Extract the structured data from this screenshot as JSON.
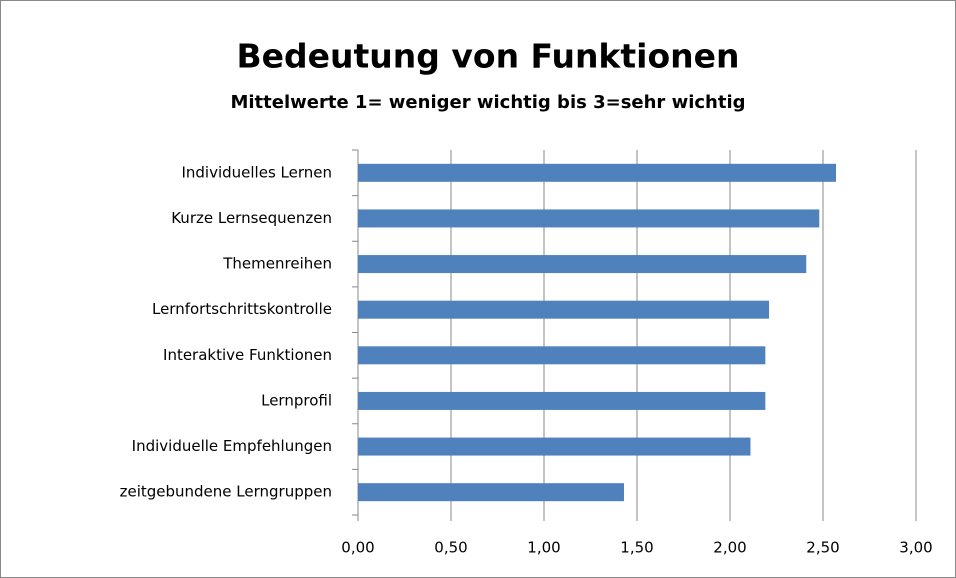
{
  "chart_data": {
    "type": "barh",
    "title": "Bedeutung von Funktionen",
    "subtitle": "Mittelwerte 1= weniger wichtig bis  3=sehr wichtig",
    "categories": [
      "Individuelles Lernen",
      "Kurze Lernsequenzen",
      "Themenreihen",
      "Lernfortschrittskontrolle",
      "Interaktive Funktionen",
      "Lernprofil",
      "Individuelle Empfehlungen",
      "zeitgebundene Lerngruppen"
    ],
    "values": [
      2.57,
      2.48,
      2.41,
      2.21,
      2.19,
      2.19,
      2.11,
      1.43
    ],
    "color": "#4f81bd",
    "xlim": [
      0,
      3
    ],
    "xticks": [
      {
        "value": 0,
        "label": "0,00"
      },
      {
        "value": 0.5,
        "label": "0,50"
      },
      {
        "value": 1,
        "label": "1,00"
      },
      {
        "value": 1.5,
        "label": "1,50"
      },
      {
        "value": 2,
        "label": "2,00"
      },
      {
        "value": 2.5,
        "label": "2,50"
      },
      {
        "value": 3,
        "label": "3,00"
      }
    ],
    "grid": true
  }
}
